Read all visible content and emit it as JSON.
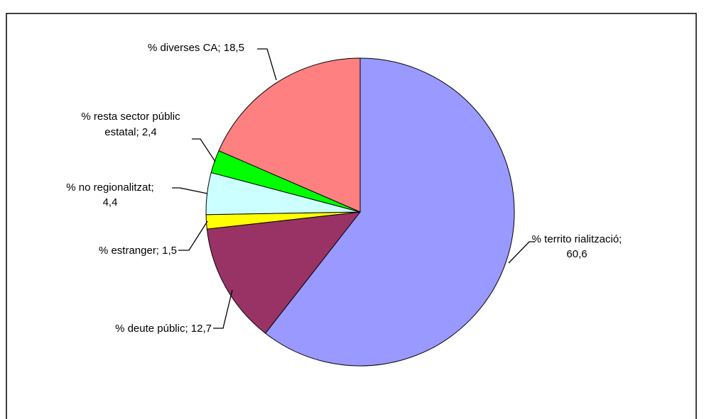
{
  "chart_data": {
    "type": "pie",
    "title": "",
    "legend": "none",
    "slices": [
      {
        "name": "% territorialització",
        "value": 60.6,
        "label_lines": [
          "% territo rialització;",
          "60,6"
        ],
        "color": "#9999FF"
      },
      {
        "name": "% deute públic",
        "value": 12.7,
        "label_lines": [
          "% deute públic; 12,7"
        ],
        "color": "#993366"
      },
      {
        "name": "% estranger",
        "value": 1.5,
        "label_lines": [
          "% estranger; 1,5"
        ],
        "color": "#FFFF00"
      },
      {
        "name": "% no regionalitzat",
        "value": 4.4,
        "label_lines": [
          "% no regionalitzat;",
          "4,4"
        ],
        "color": "#CCFFFF"
      },
      {
        "name": "% resta sector públic estatal",
        "value": 2.4,
        "label_lines": [
          "% resta sector públic",
          "estatal; 2,4"
        ],
        "color": "#00FF00"
      },
      {
        "name": "% diverses CA",
        "value": 18.5,
        "label_lines": [
          "% diverses CA; 18,5"
        ],
        "color": "#FF8080"
      }
    ]
  }
}
